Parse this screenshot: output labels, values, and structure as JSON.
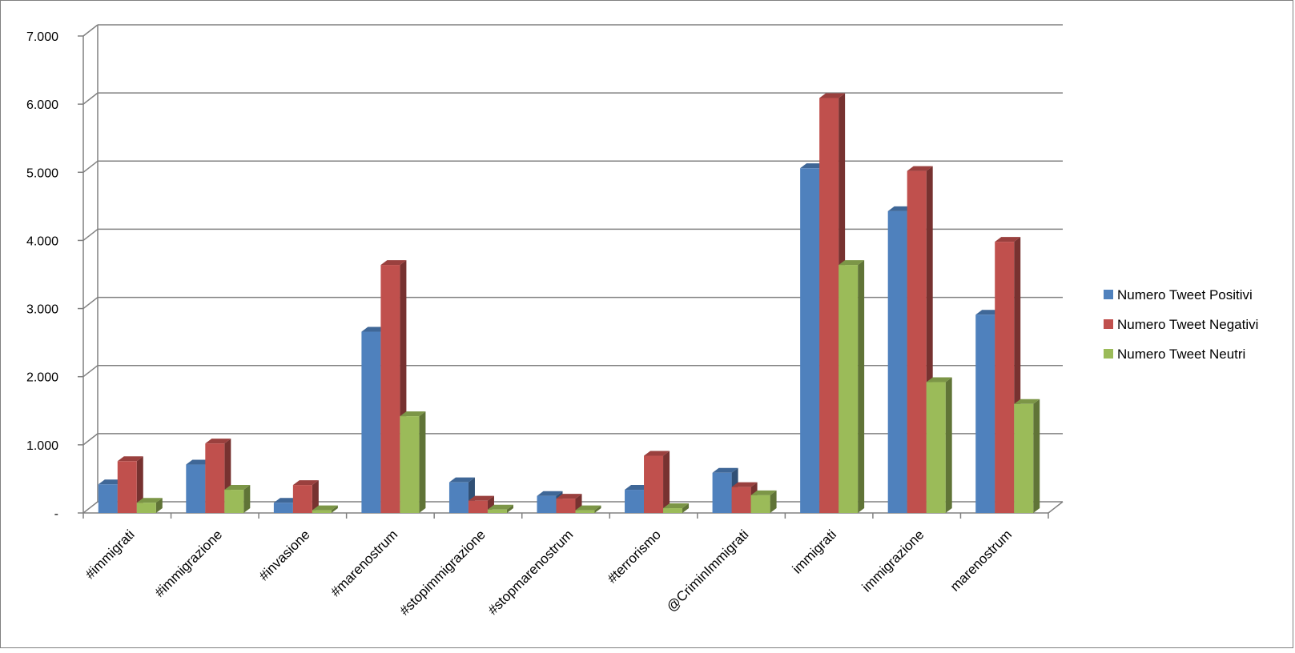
{
  "chart_data": {
    "type": "bar",
    "categories": [
      "#immigrati",
      "#immigrazione",
      "#invasione",
      "#marenostrum",
      "#stopimmigrazione",
      "#stopmarenostrum",
      "#terrorismo",
      "@CriminImmigrati",
      "immigrati",
      "immigrazione",
      "marenostrum"
    ],
    "series": [
      {
        "name": "Numero Tweet Positivi",
        "color": "#4F81BD",
        "values": [
          420,
          710,
          150,
          2660,
          450,
          250,
          340,
          590,
          5060,
          4430,
          2910
        ]
      },
      {
        "name": "Numero Tweet Negativi",
        "color": "#C0504D",
        "values": [
          760,
          1020,
          410,
          3640,
          180,
          210,
          840,
          380,
          6090,
          5020,
          3980
        ]
      },
      {
        "name": "Numero Tweet Neutri",
        "color": "#9BBB59",
        "values": [
          150,
          340,
          40,
          1420,
          50,
          40,
          70,
          260,
          3640,
          1920,
          1600
        ]
      }
    ],
    "ylim": [
      0,
      7000
    ],
    "yticks": [
      0,
      1000,
      2000,
      3000,
      4000,
      5000,
      6000,
      7000
    ],
    "ytick_labels": [
      "-",
      "1.000",
      "2.000",
      "3.000",
      "4.000",
      "5.000",
      "6.000",
      "7.000"
    ],
    "grid": true,
    "legend_position": "right",
    "style": "3d clustered columns"
  }
}
